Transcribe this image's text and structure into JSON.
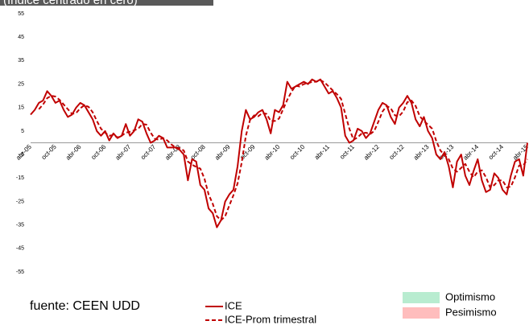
{
  "chart_data": {
    "type": "line",
    "title": "(Índice centrado en cero)",
    "source": "fuente: CEEN UDD",
    "categories": [
      "abr-05",
      null,
      null,
      null,
      null,
      null,
      "oct-05",
      null,
      null,
      null,
      null,
      null,
      "abr-06",
      null,
      null,
      null,
      null,
      null,
      "oct-06",
      null,
      null,
      null,
      null,
      null,
      "abr-07",
      null,
      null,
      null,
      null,
      null,
      "oct-07",
      null,
      null,
      null,
      null,
      null,
      "abr-08",
      null,
      null,
      null,
      null,
      null,
      "oct-08",
      null,
      null,
      null,
      null,
      null,
      "abr-09",
      null,
      null,
      null,
      null,
      null,
      "oct-09",
      null,
      null,
      null,
      null,
      null,
      "abr-10",
      null,
      null,
      null,
      null,
      null,
      "oct-10",
      null,
      null,
      null,
      null,
      null,
      "abr-11",
      null,
      null,
      null,
      null,
      null,
      "oct-11",
      null,
      null,
      null,
      null,
      null,
      "abr-12",
      null,
      null,
      null,
      null,
      null,
      "oct-12",
      null,
      null,
      null,
      null,
      null,
      "abr-13",
      null,
      null,
      null,
      null,
      null,
      "oct-13",
      null,
      null,
      null,
      null,
      null,
      "abr-14",
      null,
      null,
      null,
      null,
      null,
      "oct-14",
      null,
      null,
      null,
      null,
      null,
      "abr-15"
    ],
    "series": [
      {
        "name": "ICE",
        "color": "#c00000",
        "style": "solid",
        "values": [
          12,
          14,
          17,
          18,
          22,
          20,
          17,
          18,
          14,
          11,
          12,
          15,
          17,
          16,
          13,
          10,
          5,
          3,
          5,
          1,
          4,
          2,
          3,
          8,
          3,
          5,
          10,
          9,
          4,
          0,
          1,
          3,
          2,
          -2,
          -2,
          -2,
          -3,
          -5,
          -16,
          -7,
          -8,
          -18,
          -20,
          -28,
          -30,
          -36,
          -33,
          -25,
          -22,
          -20,
          -10,
          5,
          14,
          10,
          11,
          13,
          14,
          10,
          4,
          14,
          13,
          16,
          26,
          23,
          24,
          25,
          26,
          25,
          27,
          26,
          27,
          24,
          21,
          22,
          19,
          15,
          3,
          0,
          1,
          6,
          5,
          2,
          4,
          9,
          14,
          17,
          16,
          11,
          8,
          15,
          17,
          20,
          17,
          10,
          7,
          11,
          5,
          2,
          -5,
          -7,
          -4,
          -10,
          -19,
          -8,
          -5,
          -14,
          -18,
          -12,
          -7,
          -16,
          -21,
          -20,
          -13,
          -15,
          -20,
          -22,
          -14,
          -8,
          -7,
          -14,
          0
        ]
      },
      {
        "name": "ICE-Prom trimestral",
        "color": "#c00000",
        "style": "dashed",
        "values": [
          null,
          null,
          14.3,
          16.3,
          19,
          20,
          19.7,
          18.3,
          16.3,
          14.3,
          12.3,
          12.7,
          14.7,
          16,
          15.3,
          13,
          9.3,
          6,
          4.3,
          3,
          3.3,
          2.3,
          3,
          4.3,
          4.7,
          5.3,
          6,
          8,
          7.7,
          4.3,
          1.7,
          1.3,
          2,
          1,
          -0.7,
          -2,
          -2.3,
          -3.3,
          -8,
          -9.3,
          -10.3,
          -11,
          -15.3,
          -22,
          -26,
          -31.3,
          -33,
          -31.3,
          -26.7,
          -22.3,
          -17.3,
          -8.3,
          3,
          9.7,
          11.7,
          11.3,
          12.7,
          12.3,
          9.3,
          9.3,
          10.3,
          14.3,
          18.3,
          21.7,
          24.3,
          24,
          25,
          25.3,
          26,
          26,
          26.7,
          25.7,
          24,
          22.3,
          20.7,
          18.7,
          12.3,
          6,
          1.3,
          2.3,
          4,
          4.3,
          3.7,
          5,
          9,
          13.3,
          15.7,
          14.7,
          11.7,
          11.3,
          13.3,
          17.3,
          18,
          15.7,
          11.3,
          9.3,
          7.7,
          6,
          0.7,
          -3.3,
          -5.3,
          -7,
          -11,
          -12.3,
          -10.7,
          -9,
          -12.3,
          -14.7,
          -12.3,
          -11.7,
          -14.7,
          -19,
          -18,
          -16,
          -16,
          -19,
          -18.7,
          -14.7,
          -9.7,
          -9.7,
          -7
        ]
      }
    ],
    "areas": [
      {
        "name": "Optimismo",
        "color": "#b8ecd0"
      },
      {
        "name": "Pesimismo",
        "color": "#ffbdbd"
      }
    ],
    "ylim": [
      -55,
      55
    ],
    "yticks": [
      -55,
      -45,
      -35,
      -25,
      -15,
      -5,
      5,
      15,
      25,
      35,
      45,
      55
    ],
    "grid": false
  }
}
